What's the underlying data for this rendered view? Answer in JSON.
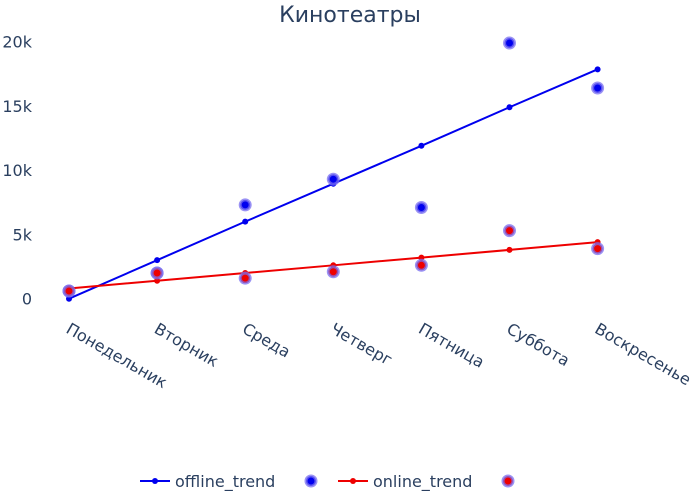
{
  "chart_data": {
    "type": "line",
    "title": "Кинотеатры",
    "xlabel": "",
    "ylabel": "",
    "categories": [
      "Понедельник",
      "Вторник",
      "Среда",
      "Четверг",
      "Пятница",
      "Суббота",
      "Воскресенье"
    ],
    "y_ticks": [
      {
        "value": 0,
        "label": "0"
      },
      {
        "value": 5000,
        "label": "5k"
      },
      {
        "value": 10000,
        "label": "10k"
      },
      {
        "value": 15000,
        "label": "15k"
      },
      {
        "value": 20000,
        "label": "20k"
      }
    ],
    "ylim": [
      -1500,
      21300
    ],
    "grid": false,
    "legend_position": "bottom",
    "series": [
      {
        "name": "offline_trend",
        "kind": "line",
        "color": "#0000ee",
        "values": [
          0,
          3000,
          6000,
          8950,
          11900,
          14900,
          17850
        ]
      },
      {
        "name": "",
        "kind": "scatter",
        "color": "#0000ee",
        "values": [
          600,
          2000,
          7300,
          9300,
          7100,
          19900,
          16400
        ]
      },
      {
        "name": "online_trend",
        "kind": "line",
        "color": "#ee0000",
        "values": [
          800,
          1400,
          2000,
          2600,
          3200,
          3800,
          4400
        ]
      },
      {
        "name": "",
        "kind": "scatter",
        "color": "#ee0000",
        "values": [
          600,
          2000,
          1600,
          2100,
          2600,
          5300,
          3900
        ]
      }
    ]
  }
}
